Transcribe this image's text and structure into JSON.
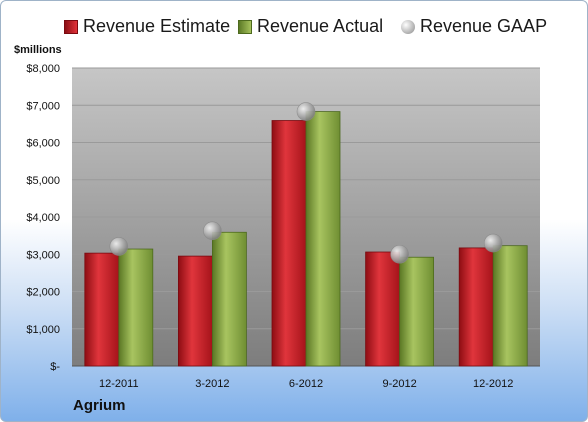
{
  "chart_data": {
    "type": "bar",
    "unit_label": "$millions",
    "company": "Agrium",
    "categories": [
      "12-2011",
      "3-2012",
      "6-2012",
      "9-2012",
      "12-2012"
    ],
    "series": [
      {
        "name": "Revenue Estimate",
        "kind": "bar",
        "color": "#c8161e",
        "values": [
          3030,
          2950,
          6590,
          3060,
          3170
        ]
      },
      {
        "name": "Revenue Actual",
        "kind": "bar",
        "color": "#8aa944",
        "values": [
          3140,
          3590,
          6830,
          2920,
          3230
        ]
      },
      {
        "name": "Revenue GAAP",
        "kind": "point",
        "color": "#b0b0b0",
        "values": [
          3210,
          3630,
          6830,
          3000,
          3300
        ]
      }
    ],
    "y_ticks": [
      "$-",
      "$1,000",
      "$2,000",
      "$3,000",
      "$4,000",
      "$5,000",
      "$6,000",
      "$7,000",
      "$8,000"
    ],
    "ylim": [
      0,
      8000
    ],
    "grid": true,
    "legend_position": "top"
  }
}
